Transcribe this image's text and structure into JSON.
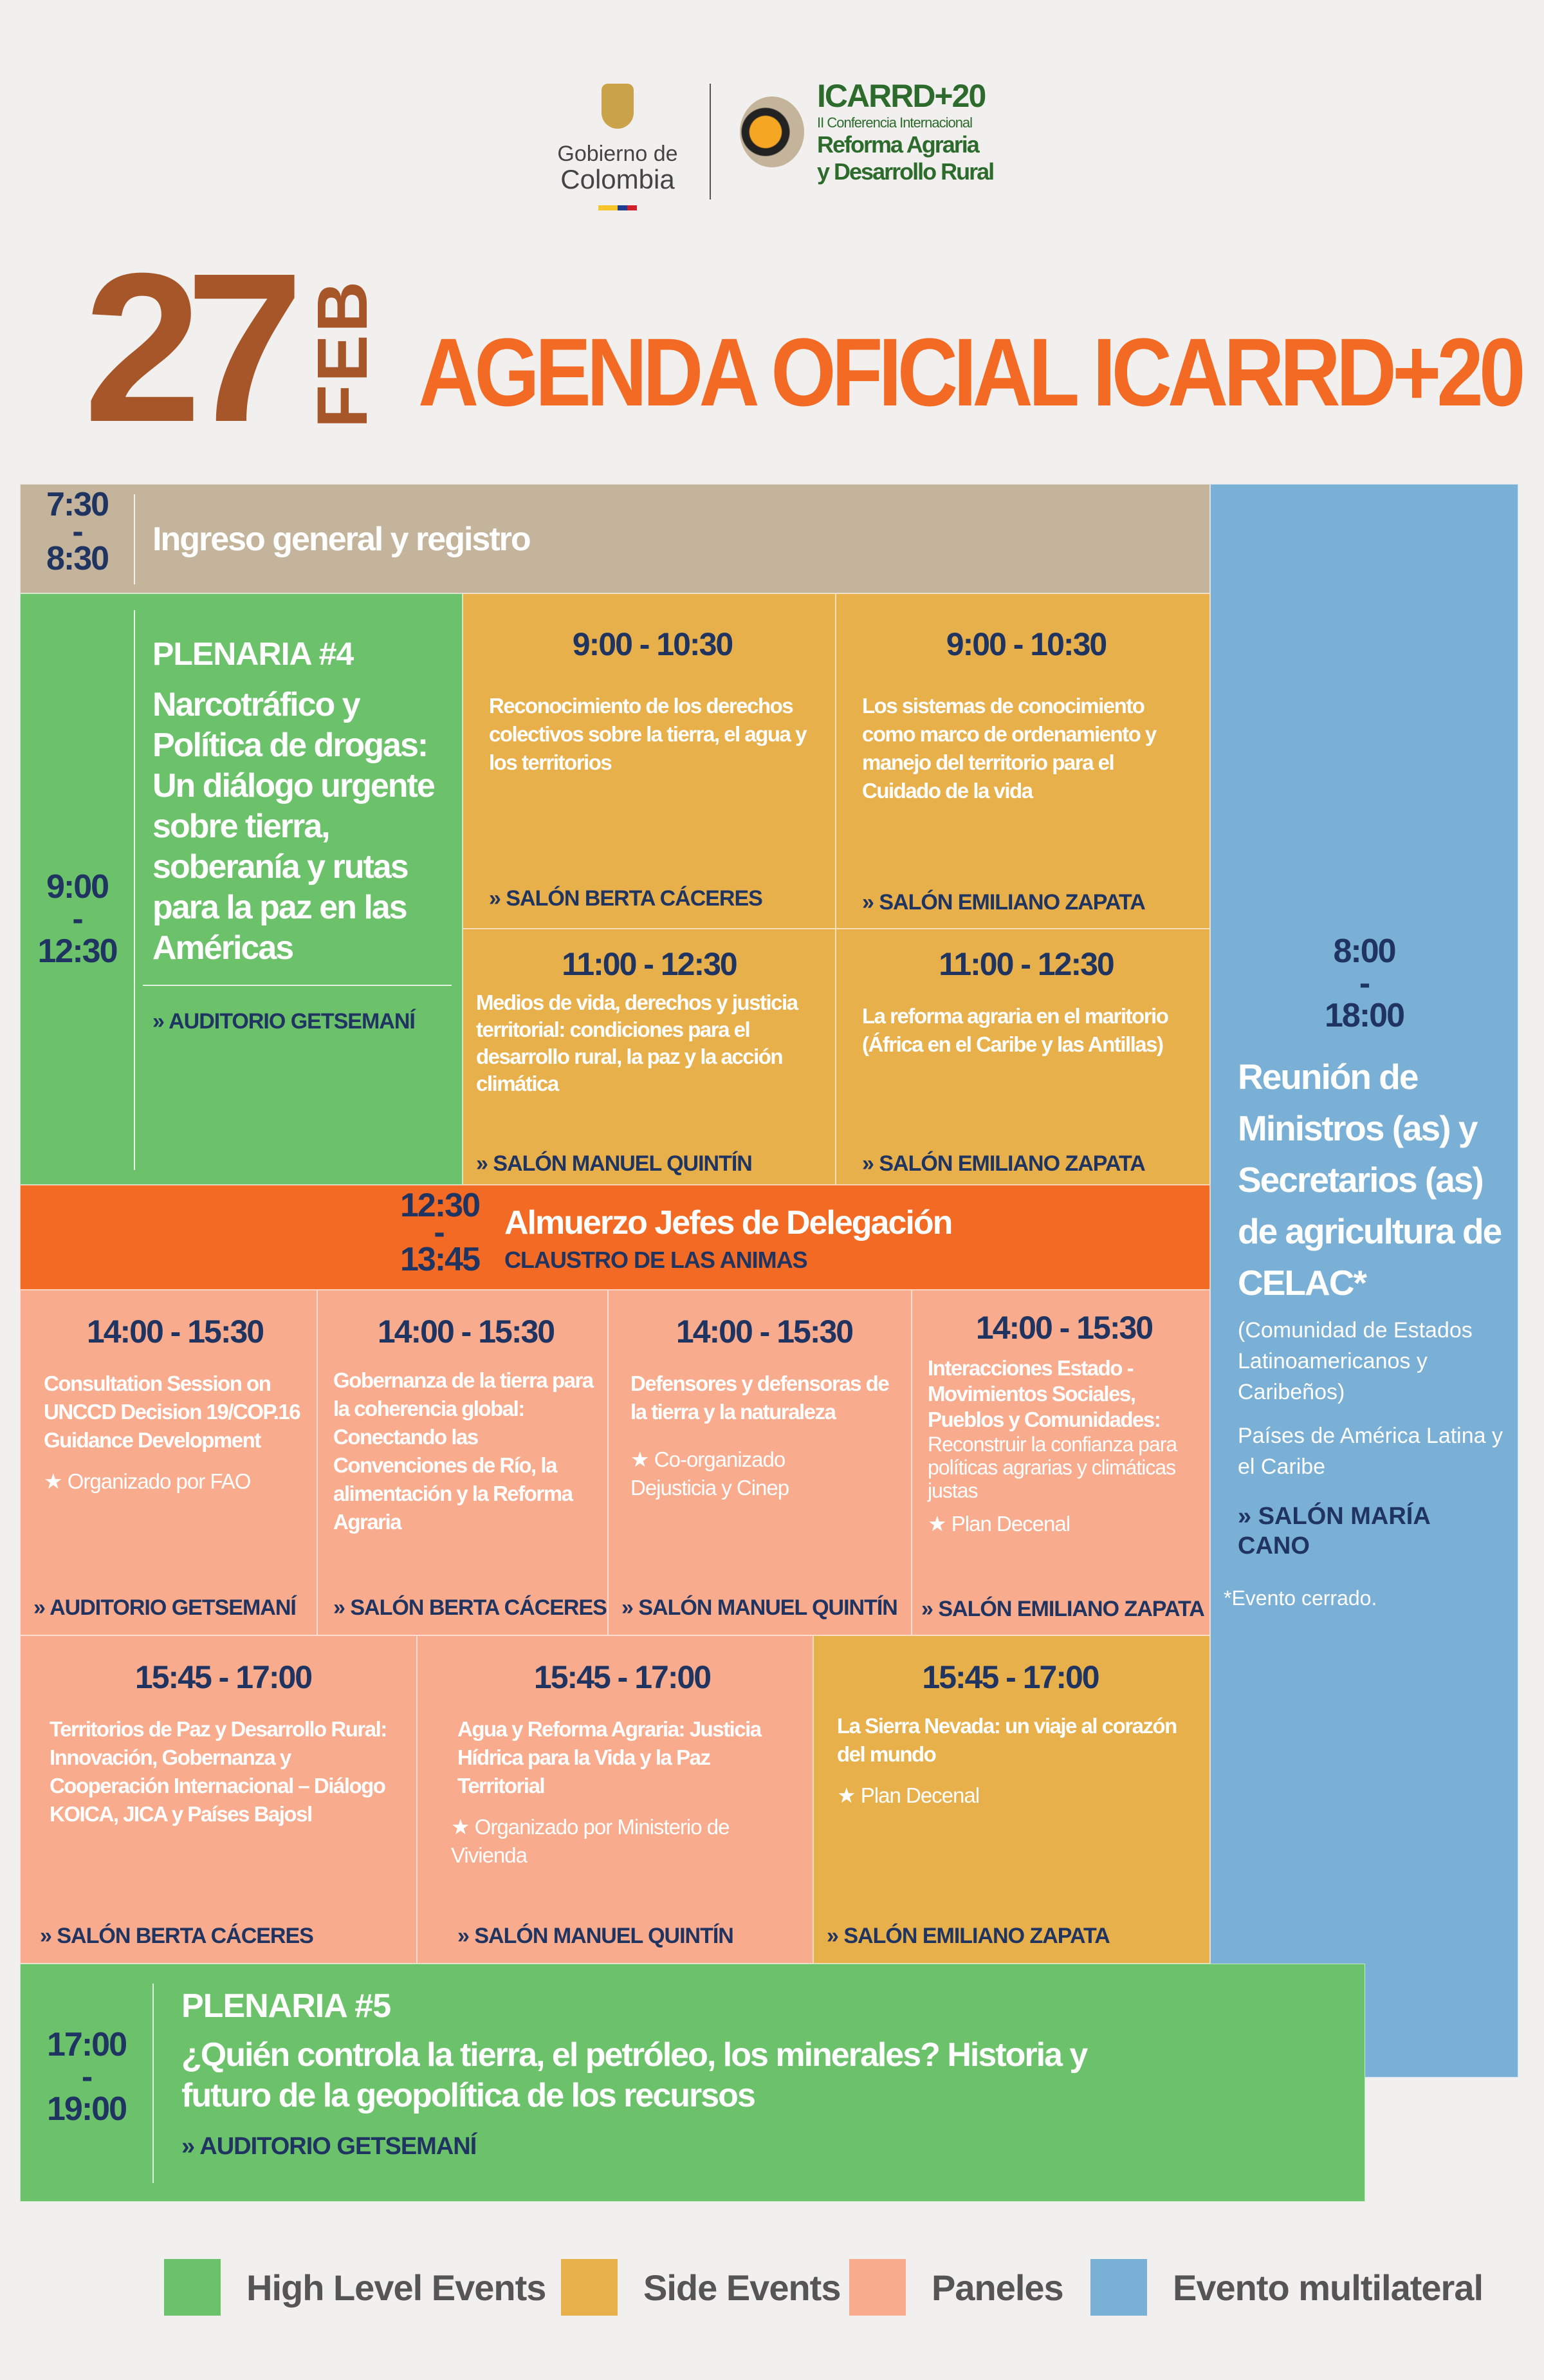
{
  "header": {
    "gov_logo_line1": "Gobierno de",
    "gov_logo_line2": "Colombia",
    "event_logo_title": "ICARRD+20",
    "event_logo_sub": "II Conferencia Internacional",
    "event_logo_line1": "Reforma Agraria",
    "event_logo_line2": "y Desarrollo Rural"
  },
  "title": {
    "day": "27",
    "month": "FEB",
    "text": "AGENDA OFICIAL ICARRD+20"
  },
  "colors": {
    "high_level": "#6cc26b",
    "side": "#e8b04b",
    "paneles": "#f9ab8e",
    "multilateral": "#7aafd6",
    "accent": "#f26a24",
    "date": "#a65628",
    "navy": "#1f3461"
  },
  "registration": {
    "start": "7:30",
    "end": "8:30",
    "title": "Ingreso general y registro"
  },
  "plenaria4": {
    "start": "9:00",
    "end": "12:30",
    "label": "PLENARIA #4",
    "title": "Narcotráfico y Política de drogas: Un diálogo urgente sobre tierra, soberanía y rutas para la paz en las Américas",
    "room": "AUDITORIO GETSEMANÍ"
  },
  "side_morning": [
    {
      "time": "9:00 - 10:30",
      "title": "Reconocimiento de los derechos colectivos sobre la tierra, el agua y los territorios",
      "room": "SALÓN BERTA CÁCERES"
    },
    {
      "time": "9:00 - 10:30",
      "title": "Los sistemas de conocimiento como marco de ordenamiento y manejo del territorio para el Cuidado de la vida",
      "room": "SALÓN EMILIANO ZAPATA"
    },
    {
      "time": "11:00 - 12:30",
      "title": "Medios de vida, derechos y justicia territorial: condiciones para el desarrollo rural, la paz y la acción climática",
      "room": "SALÓN MANUEL QUINTÍN"
    },
    {
      "time": "11:00 - 12:30",
      "title": "La reforma agraria en el maritorio (África en el Caribe y las Antillas)",
      "room": "SALÓN EMILIANO ZAPATA"
    }
  ],
  "lunch": {
    "start": "12:30",
    "end": "13:45",
    "title": "Almuerzo Jefes de Delegación",
    "room": "CLAUSTRO DE LAS ANIMAS"
  },
  "panels_1400": [
    {
      "time": "14:00 - 15:30",
      "title": "Consultation Session on UNCCD Decision 19/COP.16 Guidance Development",
      "note": "Organizado por FAO",
      "room": "AUDITORIO GETSEMANÍ"
    },
    {
      "time": "14:00 - 15:30",
      "title": "Gobernanza de la tierra para la coherencia global: Conectando las Convenciones de Río, la alimentación y la Reforma Agraria",
      "room": "SALÓN BERTA CÁCERES"
    },
    {
      "time": "14:00 - 15:30",
      "title": "Defensores y defensoras de la tierra y la naturaleza",
      "note": "Co-organizado Dejusticia y Cinep",
      "room": "SALÓN MANUEL QUINTÍN"
    },
    {
      "time": "14:00 - 15:30",
      "title": "Interacciones Estado - Movimientos Sociales, Pueblos y Comunidades:",
      "subtitle": "Reconstruir la confianza para políticas agrarias y climáticas justas",
      "note": "Plan Decenal",
      "room": "SALÓN EMILIANO ZAPATA"
    }
  ],
  "panels_1545": [
    {
      "time": "15:45 - 17:00",
      "title": "Territorios de Paz y Desarrollo Rural: Innovación, Gobernanza y Cooperación Internacional – Diálogo KOICA, JICA y Países Bajosl",
      "room": "SALÓN BERTA CÁCERES"
    },
    {
      "time": "15:45 - 17:00",
      "title": "Agua y Reforma Agraria: Justicia Hídrica para la Vida y la Paz Territorial",
      "note": "Organizado por Ministerio de Vivienda",
      "room": "SALÓN MANUEL QUINTÍN"
    },
    {
      "time": "15:45 - 17:00",
      "title": "La Sierra Nevada: un viaje al corazón del mundo",
      "note": "Plan Decenal",
      "room": "SALÓN EMILIANO ZAPATA"
    }
  ],
  "plenaria5": {
    "start": "17:00",
    "end": "19:00",
    "label": "PLENARIA #5",
    "title": "¿Quién controla la tierra, el petróleo, los minerales? Historia y futuro de la geopolítica de los recursos",
    "room": "AUDITORIO GETSEMANÍ"
  },
  "ministers": {
    "start": "8:00",
    "end": "18:00",
    "title": "Reunión de Ministros (as) y Secretarios (as) de agricultura de CELAC*",
    "subtitle": "(Comunidad de Estados Latinoamericanos y Caribeños)",
    "regions": "Países de América Latina y el Caribe",
    "room": "SALÓN MARÍA CANO",
    "footnote": "*Evento cerrado."
  },
  "legend": [
    "High Level Events",
    "Side Events",
    "Paneles",
    "Evento multilateral"
  ],
  "dash": "-",
  "arrows": "»",
  "star": "★"
}
